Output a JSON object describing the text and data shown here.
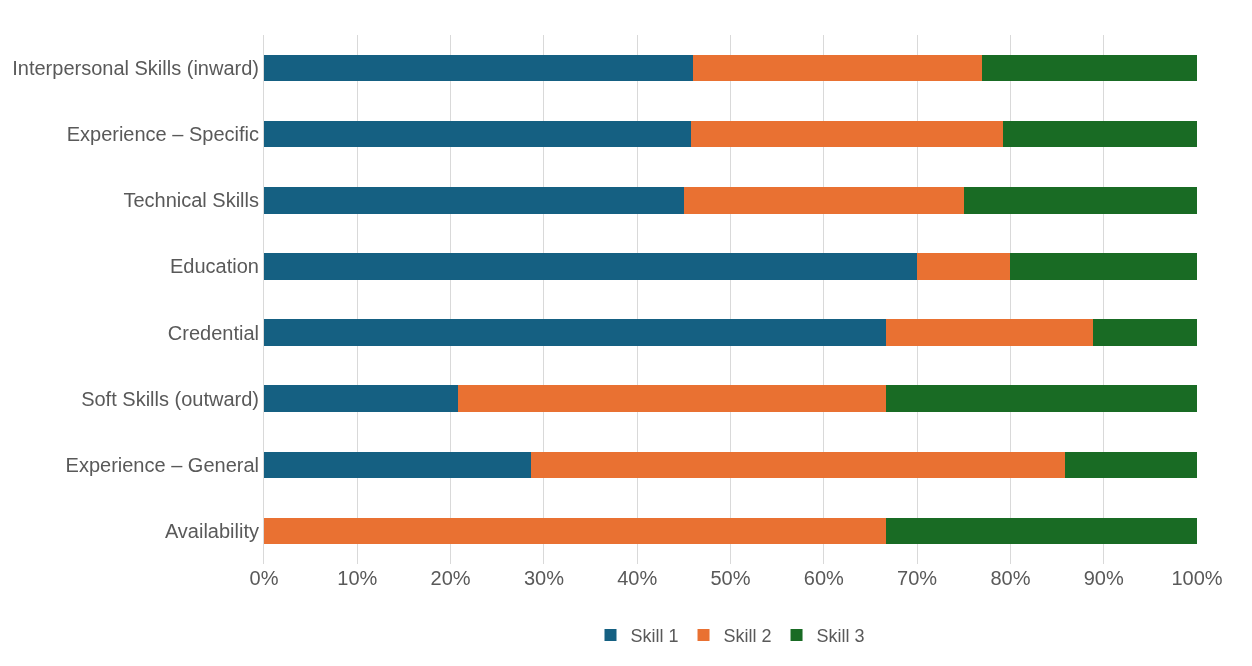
{
  "chart_data": {
    "type": "bar",
    "orientation": "horizontal",
    "stacked": true,
    "categories": [
      "Interpersonal Skills (inward)",
      "Experience – Specific",
      "Technical Skills",
      "Education",
      "Credential",
      "Soft Skills (outward)",
      "Experience – General",
      "Availability"
    ],
    "series": [
      {
        "name": "Skill 1",
        "color": "#156082",
        "values": [
          46.0,
          45.8,
          45.0,
          70.0,
          66.7,
          20.8,
          28.6,
          0
        ]
      },
      {
        "name": "Skill 2",
        "color": "#e97132",
        "values": [
          31.0,
          33.4,
          30.0,
          10.0,
          22.2,
          45.9,
          57.2,
          66.7
        ]
      },
      {
        "name": "Skill 3",
        "color": "#196b24",
        "values": [
          23.0,
          20.8,
          25.0,
          20.0,
          11.1,
          33.3,
          14.2,
          33.3
        ]
      }
    ],
    "xlim": [
      0,
      100
    ],
    "xticks": [
      {
        "value": 0,
        "label": "0%"
      },
      {
        "value": 10,
        "label": "10%"
      },
      {
        "value": 20,
        "label": "20%"
      },
      {
        "value": 30,
        "label": "30%"
      },
      {
        "value": 40,
        "label": "40%"
      },
      {
        "value": 50,
        "label": "50%"
      },
      {
        "value": 60,
        "label": "60%"
      },
      {
        "value": 70,
        "label": "70%"
      },
      {
        "value": 80,
        "label": "80%"
      },
      {
        "value": 90,
        "label": "90%"
      },
      {
        "value": 100,
        "label": "100%"
      }
    ],
    "grid": "x",
    "legend": "bottom"
  }
}
